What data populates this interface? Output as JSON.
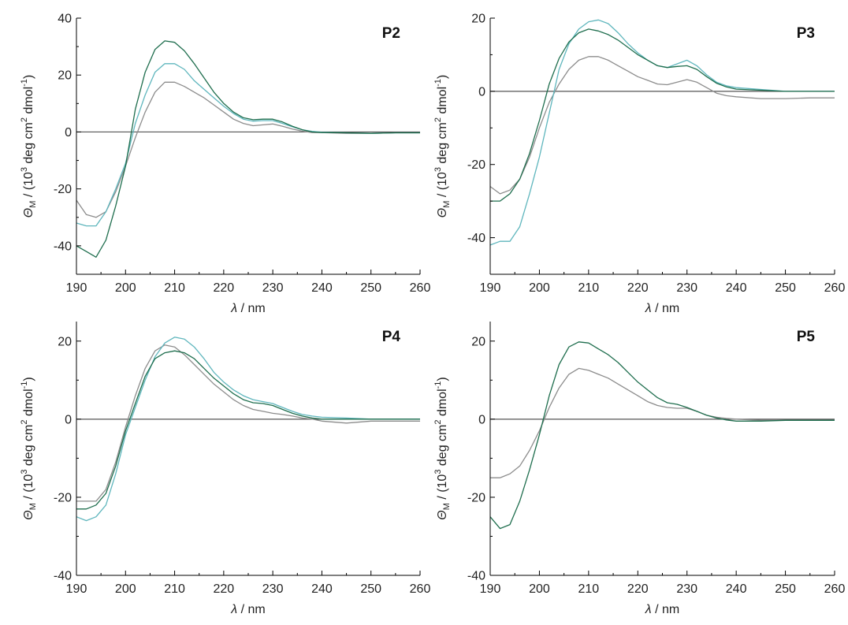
{
  "figure": {
    "xlabel": {
      "symbol": "λ",
      "rest": " / nm"
    },
    "ylabel": {
      "symbol": "Θ",
      "sub": "M",
      "part1": " / (10",
      "sup1": "3",
      "part2": " deg cm",
      "sup2": "2",
      "part3": " dmol",
      "sup3": "-1",
      "part4": ")"
    }
  },
  "colors": {
    "gray": "#8c8c8c",
    "cyan": "#5fb6bd",
    "green": "#1f6e4e",
    "zero_line": "#555555",
    "axis": "#000000"
  },
  "chart_data": [
    {
      "type": "line",
      "title": "P2",
      "xlim": [
        190,
        260
      ],
      "ylim": [
        -50,
        40
      ],
      "xticks": [
        190,
        200,
        210,
        220,
        230,
        240,
        250,
        260
      ],
      "yticks": [
        -40,
        -20,
        0,
        20,
        40
      ],
      "x": [
        190,
        192,
        194,
        196,
        198,
        200,
        202,
        204,
        206,
        208,
        210,
        212,
        214,
        216,
        218,
        220,
        222,
        224,
        226,
        228,
        230,
        232,
        234,
        236,
        238,
        240,
        245,
        250,
        255,
        260
      ],
      "series": [
        {
          "color": "gray",
          "values": [
            -24,
            -29,
            -30,
            -28,
            -21,
            -12,
            -2,
            7,
            14,
            17.5,
            17.5,
            16,
            14,
            12,
            9.5,
            7,
            4.5,
            3,
            2.2,
            2.5,
            2.8,
            2,
            1,
            0.3,
            -0.2,
            -0.2,
            -0.5,
            -0.5,
            -0.3,
            -0.3
          ]
        },
        {
          "color": "cyan",
          "values": [
            -32,
            -33,
            -33,
            -28,
            -20,
            -11,
            3,
            13,
            21,
            24,
            24,
            22,
            18,
            15,
            12,
            9,
            6.5,
            4.5,
            3.8,
            4,
            4,
            3,
            1.8,
            0.8,
            0.2,
            -0.1,
            -0.3,
            -0.5,
            -0.3,
            -0.3
          ]
        },
        {
          "color": "green",
          "values": [
            -40,
            -42,
            -44,
            -38,
            -26,
            -12,
            8,
            21,
            29,
            32,
            31.5,
            28.5,
            24,
            19,
            14,
            10,
            7,
            5,
            4.3,
            4.5,
            4.5,
            3.5,
            2,
            0.8,
            0,
            -0.2,
            -0.3,
            -0.5,
            -0.3,
            -0.3
          ]
        }
      ]
    },
    {
      "type": "line",
      "title": "P3",
      "xlim": [
        190,
        260
      ],
      "ylim": [
        -50,
        20
      ],
      "xticks": [
        190,
        200,
        210,
        220,
        230,
        240,
        250,
        260
      ],
      "yticks": [
        -40,
        -20,
        0,
        20
      ],
      "x": [
        190,
        192,
        194,
        196,
        198,
        200,
        202,
        204,
        206,
        208,
        210,
        212,
        214,
        216,
        218,
        220,
        222,
        224,
        226,
        228,
        230,
        232,
        234,
        236,
        238,
        240,
        245,
        250,
        255,
        260
      ],
      "series": [
        {
          "color": "gray",
          "values": [
            -26,
            -28,
            -27,
            -24,
            -18,
            -10,
            -3,
            2,
            6,
            8.5,
            9.5,
            9.5,
            8.5,
            7,
            5.5,
            4,
            3,
            2,
            1.8,
            2.5,
            3.2,
            2.5,
            1,
            -0.5,
            -1.2,
            -1.5,
            -2,
            -2,
            -1.8,
            -1.8
          ]
        },
        {
          "color": "cyan",
          "values": [
            -42,
            -41,
            -41,
            -37,
            -28,
            -18,
            -6,
            6,
            13,
            17,
            19,
            19.5,
            18.5,
            16,
            13,
            10.5,
            8.5,
            7,
            6.5,
            7.5,
            8.5,
            7,
            4.5,
            2.5,
            1.5,
            1,
            0.5,
            0,
            0,
            0
          ]
        },
        {
          "color": "green",
          "values": [
            -30,
            -30,
            -28,
            -24,
            -17,
            -8,
            2,
            9,
            13.5,
            16,
            17,
            16.5,
            15.5,
            14,
            12,
            10,
            8.5,
            7,
            6.5,
            6.8,
            7,
            6,
            4,
            2.2,
            1.2,
            0.6,
            0.3,
            0,
            0,
            0
          ]
        }
      ]
    },
    {
      "type": "line",
      "title": "P4",
      "xlim": [
        190,
        260
      ],
      "ylim": [
        -40,
        25
      ],
      "xticks": [
        190,
        200,
        210,
        220,
        230,
        240,
        250,
        260
      ],
      "yticks": [
        -40,
        -20,
        0,
        20
      ],
      "x": [
        190,
        192,
        194,
        196,
        198,
        200,
        202,
        204,
        206,
        208,
        210,
        212,
        214,
        216,
        218,
        220,
        222,
        224,
        226,
        228,
        230,
        232,
        234,
        236,
        238,
        240,
        245,
        250,
        255,
        260
      ],
      "series": [
        {
          "color": "gray",
          "values": [
            -21,
            -21,
            -21,
            -18,
            -11,
            -2,
            6,
            13,
            17.5,
            19,
            18.5,
            16.5,
            14,
            11.5,
            9,
            7,
            5,
            3.5,
            2.5,
            2,
            1.5,
            1.2,
            0.8,
            0.3,
            0,
            -0.5,
            -1,
            -0.5,
            -0.5,
            -0.5
          ]
        },
        {
          "color": "cyan",
          "values": [
            -25,
            -26,
            -25,
            -22,
            -14,
            -4,
            3,
            10,
            16,
            19.5,
            21,
            20.5,
            18.5,
            15.5,
            12,
            9.5,
            7.5,
            6,
            5,
            4.5,
            4,
            3,
            2,
            1.2,
            0.8,
            0.5,
            0.3,
            0,
            0,
            0
          ]
        },
        {
          "color": "green",
          "values": [
            -23,
            -23,
            -22,
            -19,
            -12,
            -3,
            4,
            11,
            15.5,
            17,
            17.5,
            17,
            15.5,
            13,
            10.5,
            8.5,
            6.5,
            5,
            4.2,
            4,
            3.5,
            2.5,
            1.5,
            0.8,
            0.3,
            0,
            0,
            0,
            0,
            0
          ]
        }
      ]
    },
    {
      "type": "line",
      "title": "P5",
      "xlim": [
        190,
        260
      ],
      "ylim": [
        -40,
        25
      ],
      "xticks": [
        190,
        200,
        210,
        220,
        230,
        240,
        250,
        260
      ],
      "yticks": [
        -40,
        -20,
        0,
        20
      ],
      "x": [
        190,
        192,
        194,
        196,
        198,
        200,
        202,
        204,
        206,
        208,
        210,
        212,
        214,
        216,
        218,
        220,
        222,
        224,
        226,
        228,
        230,
        232,
        234,
        236,
        238,
        240,
        245,
        250,
        255,
        260
      ],
      "series": [
        {
          "color": "gray",
          "values": [
            -15,
            -15,
            -14,
            -12,
            -8,
            -3,
            3,
            8,
            11.5,
            13,
            12.5,
            11.5,
            10.5,
            9,
            7.5,
            6,
            4.5,
            3.5,
            3,
            2.8,
            2.8,
            2,
            1,
            0.5,
            0.2,
            0,
            -0.3,
            -0.3,
            -0.3,
            -0.3
          ]
        },
        {
          "color": "green",
          "values": [
            -25,
            -28,
            -27,
            -21,
            -13,
            -4,
            6,
            14,
            18.5,
            19.8,
            19.5,
            18,
            16.5,
            14.5,
            12,
            9.5,
            7.5,
            5.5,
            4.2,
            3.8,
            3,
            2,
            1,
            0.3,
            -0.2,
            -0.5,
            -0.5,
            -0.3,
            -0.3,
            -0.3
          ]
        }
      ]
    }
  ]
}
